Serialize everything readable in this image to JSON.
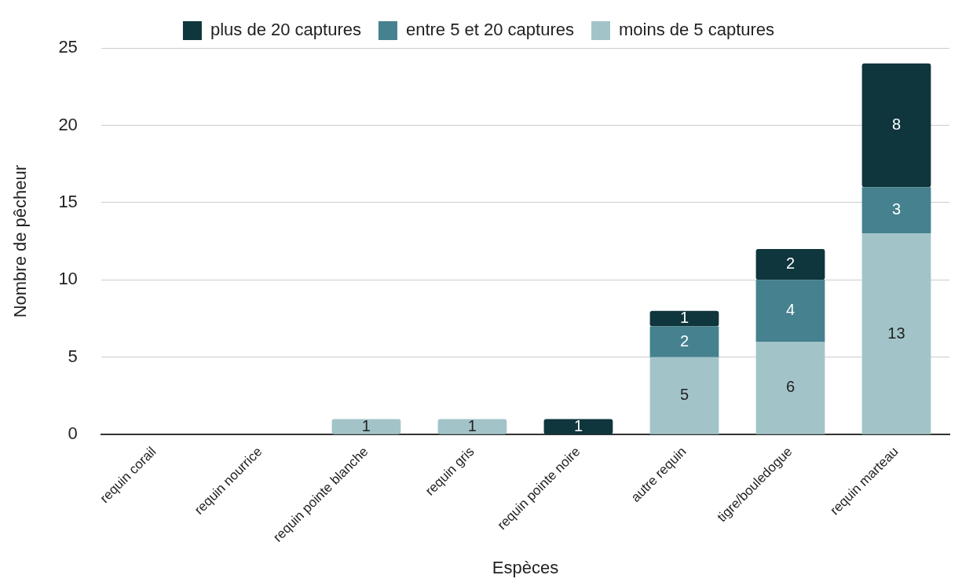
{
  "chart_data": {
    "type": "bar",
    "stacked": true,
    "xlabel": "Espèces",
    "ylabel": "Nombre de pêcheur",
    "categories": [
      "requin corail",
      "requin nourrice",
      "requin pointe blanche",
      "requin gris",
      "requin pointe noire",
      "autre requin",
      "tigre/bouledogue",
      "requin marteau"
    ],
    "series": [
      {
        "name": "moins de 5 captures",
        "color": "#a2c4c9",
        "values": [
          null,
          null,
          1,
          1,
          null,
          5,
          6,
          13
        ]
      },
      {
        "name": "entre 5 et 20 captures",
        "color": "#45818e",
        "values": [
          null,
          null,
          null,
          null,
          null,
          2,
          4,
          3
        ]
      },
      {
        "name": "plus de 20 captures",
        "color": "#0f353d",
        "values": [
          null,
          null,
          null,
          null,
          1,
          1,
          2,
          8
        ]
      }
    ],
    "ylim": [
      0,
      25
    ],
    "yticks": [
      0,
      5,
      10,
      15,
      20,
      25
    ],
    "grid": "y",
    "legend": "top",
    "data_labels": true
  }
}
